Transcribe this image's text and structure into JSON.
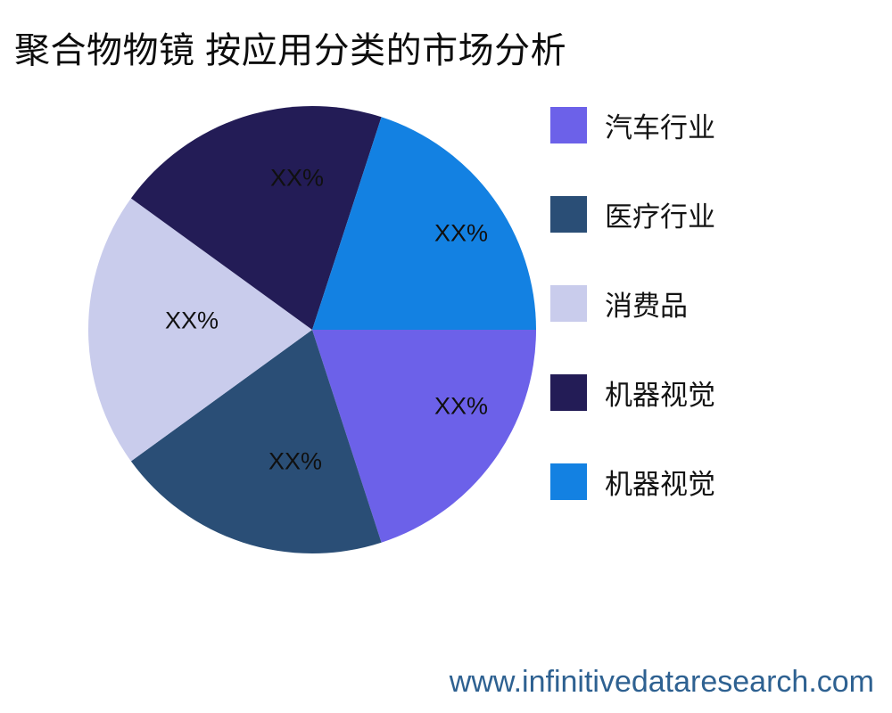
{
  "title": "聚合物物镜 按应用分类的市场分析",
  "footer": {
    "website": "www.infinitivedataresearch.com",
    "color": "#2e6191"
  },
  "chart_data": {
    "type": "pie",
    "title": "聚合物物镜 按应用分类的市场分析",
    "legend_position": "right",
    "start_angle_deg": 0,
    "direction": "clockwise",
    "note_values_masked": "slice percentages shown as XX% placeholders; slices visually equal (~20% each)",
    "slices": [
      {
        "label": "汽车行业",
        "value_label": "XX%",
        "value_pct": 20,
        "color": "#6C61E9"
      },
      {
        "label": "医疗行业",
        "value_label": "XX%",
        "value_pct": 20,
        "color": "#2A4E76"
      },
      {
        "label": "消费品",
        "value_label": "XX%",
        "value_pct": 20,
        "color": "#C9CCEC"
      },
      {
        "label": "机器视觉",
        "value_label": "XX%",
        "value_pct": 20,
        "color": "#231C56"
      },
      {
        "label": "机器视觉",
        "value_label": "XX%",
        "value_pct": 20,
        "color": "#1381E2"
      }
    ]
  }
}
